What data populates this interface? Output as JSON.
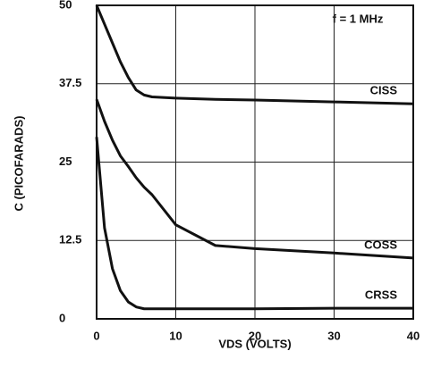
{
  "chart_data": {
    "type": "line",
    "annotation": "f = 1 MHz",
    "x_label": "VDS (VOLTS)",
    "y_label": "C (PICOFARADS)",
    "x": [
      0,
      1,
      2,
      3,
      4,
      5,
      6,
      7,
      10,
      15,
      20,
      30,
      40
    ],
    "series": [
      {
        "name": "CISS",
        "color": "#111111",
        "values": [
          50,
          47,
          44,
          41,
          38.5,
          36.5,
          35.7,
          35.4,
          35.2,
          35,
          34.9,
          34.6,
          34.3
        ]
      },
      {
        "name": "COSS",
        "color": "#111111",
        "values": [
          35,
          31.5,
          28.5,
          26,
          24.3,
          22.5,
          21,
          19.8,
          15,
          11.7,
          11.2,
          10.5,
          9.7
        ]
      },
      {
        "name": "CRSS",
        "color": "#111111",
        "values": [
          29,
          14.5,
          8,
          4.5,
          2.7,
          1.9,
          1.6,
          1.6,
          1.6,
          1.6,
          1.6,
          1.7,
          1.7
        ]
      }
    ],
    "xlim": [
      0,
      40
    ],
    "xticks": [
      0,
      10,
      20,
      30,
      40
    ],
    "ylim": [
      0,
      50
    ],
    "yticks": [
      0,
      12.5,
      25,
      37.5,
      50
    ],
    "grid": true
  }
}
